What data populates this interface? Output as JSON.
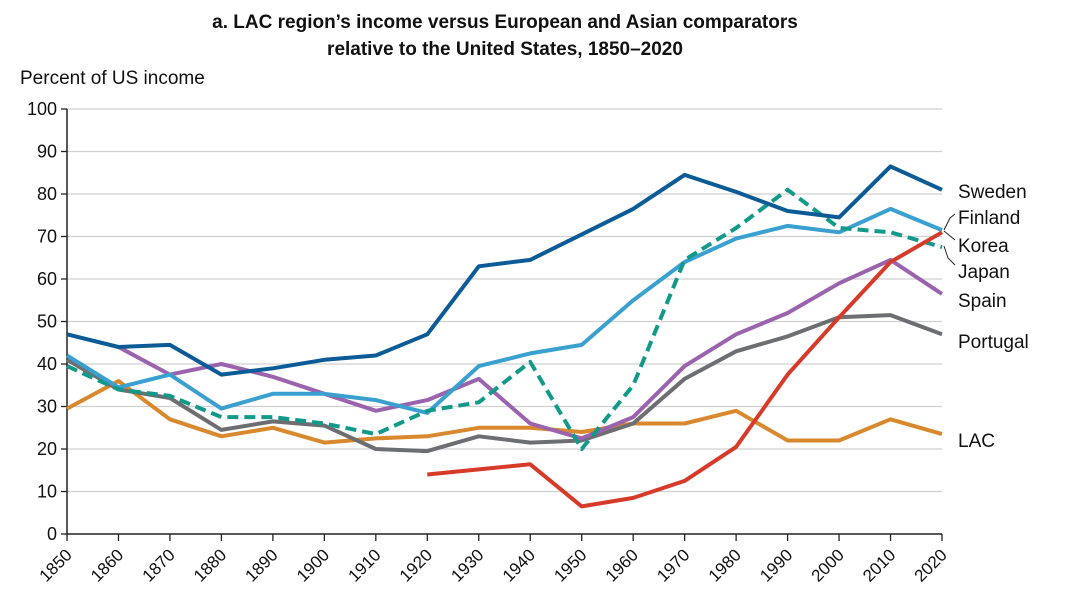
{
  "chart_data": {
    "type": "line",
    "title": "a. LAC region’s income versus European and Asian comparators",
    "subtitle": "relative to the United States, 1850–2020",
    "ylabel": "Percent of US income",
    "xlabel": "",
    "ylim": [
      0,
      100
    ],
    "yticks": [
      0,
      10,
      20,
      30,
      40,
      50,
      60,
      70,
      80,
      90,
      100
    ],
    "x": [
      1850,
      1860,
      1870,
      1880,
      1890,
      1900,
      1910,
      1920,
      1930,
      1940,
      1950,
      1960,
      1970,
      1980,
      1990,
      2000,
      2010,
      2020
    ],
    "grid": true,
    "legend": "direct labels at right",
    "series": [
      {
        "name": "LAC",
        "color": "#d9892d",
        "dashed": false,
        "values": [
          29.5,
          36,
          27,
          23,
          25,
          21.5,
          22.5,
          23,
          25,
          25,
          24,
          26,
          26,
          29,
          22,
          22,
          27,
          23.5
        ]
      },
      {
        "name": "Portugal",
        "color": "#6d6e71",
        "dashed": false,
        "values": [
          41,
          34,
          32,
          24.5,
          26.5,
          25.5,
          20,
          19.5,
          23,
          21.5,
          22,
          26,
          36.5,
          43,
          46.5,
          51,
          51.5,
          47
        ]
      },
      {
        "name": "Spain",
        "color": "#9b62ae",
        "dashed": false,
        "values": [
          null,
          44,
          37.5,
          40,
          37,
          33,
          29,
          31.5,
          36.5,
          26,
          22.5,
          27.5,
          39.5,
          47,
          52,
          59,
          64.5,
          56.5
        ]
      },
      {
        "name": "Finland",
        "color": "#3aa0cf",
        "dashed": false,
        "values": [
          42,
          34.5,
          37.5,
          29.5,
          33,
          33,
          31.5,
          28.5,
          39.5,
          42.5,
          44.5,
          55,
          64,
          69.5,
          72.5,
          71,
          76.5,
          71.5
        ]
      },
      {
        "name": "Japan",
        "color": "#11998a",
        "dashed": true,
        "values": [
          39.5,
          34,
          32.5,
          27.5,
          27.5,
          26,
          23.5,
          29,
          31,
          40.5,
          20,
          35,
          64.5,
          72,
          81,
          72,
          71,
          67.5
        ]
      },
      {
        "name": "Korea",
        "color": "#d63b2a",
        "dashed": false,
        "values": [
          null,
          null,
          null,
          null,
          null,
          null,
          null,
          14,
          15.2,
          16.4,
          6.5,
          8.5,
          12.5,
          20.5,
          37.5,
          51,
          64,
          71
        ]
      },
      {
        "name": "Sweden",
        "color": "#0a5b96",
        "dashed": false,
        "values": [
          47,
          44,
          44.5,
          37.5,
          39,
          41,
          42,
          47,
          63,
          64.5,
          70.5,
          76.5,
          84.5,
          80.5,
          76,
          74.5,
          86.5,
          81
        ]
      }
    ]
  }
}
